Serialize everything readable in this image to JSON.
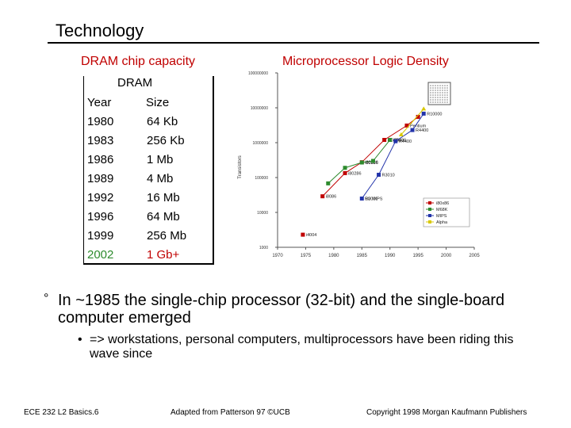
{
  "slide": {
    "title": "Technology"
  },
  "dram": {
    "section_title": "DRAM chip capacity",
    "header_top": "DRAM",
    "col_year": "Year",
    "col_size": "Size",
    "rows": [
      {
        "year": "1980",
        "size": "64 Kb"
      },
      {
        "year": "1983",
        "size": "256 Kb"
      },
      {
        "year": "1986",
        "size": "1 Mb"
      },
      {
        "year": "1989",
        "size": "4 Mb"
      },
      {
        "year": "1992",
        "size": "16 Mb"
      },
      {
        "year": "1996",
        "size": "64 Mb"
      },
      {
        "year": "1999",
        "size": "256 Mb"
      },
      {
        "year": "2002",
        "size": "1 Gb+"
      }
    ]
  },
  "microprocessor": {
    "section_title": "Microprocessor Logic Density"
  },
  "chart_data": {
    "type": "scatter",
    "title": "Microprocessor Logic Density",
    "ylabel": "Transistors",
    "xlabel": "",
    "y_scale": "log",
    "ylim": [
      1000,
      100000000
    ],
    "xlim": [
      1970,
      2005
    ],
    "y_ticks": [
      "100000000",
      "10000000",
      "1000000",
      "100000",
      "10000",
      "1000"
    ],
    "x_ticks": [
      "1970",
      "1975",
      "1980",
      "1985",
      "1990",
      "1995",
      "2000",
      "2005"
    ],
    "legend": [
      "i80x86",
      "M68K",
      "MIPS",
      "Alpha"
    ],
    "legend_position": "bottom-right",
    "colors": {
      "i80x86": "#c00000",
      "M68K": "#2e8b2e",
      "MIPS": "#2233aa",
      "Alpha": "#d8c800"
    },
    "series": [
      {
        "name": "i80x86",
        "points": [
          {
            "x": 1978,
            "y": 29000,
            "label": "i8086"
          },
          {
            "x": 1982,
            "y": 134000,
            "label": "i80286"
          },
          {
            "x": 1985,
            "y": 275000,
            "label": "i80386"
          },
          {
            "x": 1989,
            "y": 1200000,
            "label": "i80486"
          },
          {
            "x": 1993,
            "y": 3100000,
            "label": "Pentium"
          },
          {
            "x": 1995,
            "y": 5500000,
            "label": ""
          }
        ]
      },
      {
        "name": "M68K",
        "points": [
          {
            "x": 1979,
            "y": 68000,
            "label": ""
          },
          {
            "x": 1982,
            "y": 190000,
            "label": ""
          },
          {
            "x": 1985,
            "y": 270000,
            "label": "i80386"
          },
          {
            "x": 1987,
            "y": 300000,
            "label": ""
          },
          {
            "x": 1990,
            "y": 1200000,
            "label": "i80486"
          }
        ]
      },
      {
        "name": "MIPS",
        "points": [
          {
            "x": 1985,
            "y": 25000,
            "label": "R2000"
          },
          {
            "x": 1988,
            "y": 120000,
            "label": "R3010"
          },
          {
            "x": 1991,
            "y": 1100000,
            "label": "R4400"
          },
          {
            "x": 1994,
            "y": 2300000,
            "label": "R4400"
          },
          {
            "x": 1996,
            "y": 6800000,
            "label": "R10000"
          }
        ]
      },
      {
        "name": "Alpha",
        "points": [
          {
            "x": 1992,
            "y": 1700000,
            "label": ""
          },
          {
            "x": 1996,
            "y": 9300000,
            "label": ""
          }
        ]
      }
    ],
    "annotations": [
      "R10000",
      "Pentium",
      "R4400",
      "i80486",
      "i80386",
      "i80286",
      "R3010",
      "i8086",
      "SU MIPS",
      "i4004"
    ]
  },
  "bullets": {
    "main_marker": "°",
    "main": "In ~1985 the single-chip processor (32-bit) and the single-board computer emerged",
    "sub_marker": "•",
    "sub": "=> workstations, personal computers, multiprocessors have been riding this wave since"
  },
  "footer": {
    "left": "ECE 232  L2 Basics.6",
    "center": "Adapted from Patterson 97 ©UCB",
    "right": "Copyright 1998 Morgan Kaufmann Publishers"
  }
}
